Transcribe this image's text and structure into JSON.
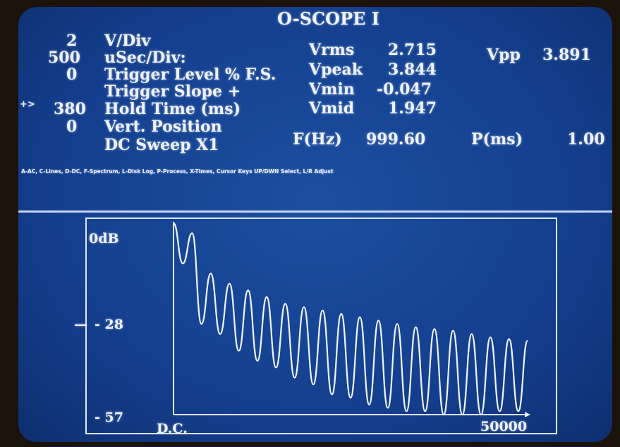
{
  "title": "O-SCOPE I",
  "settings": [
    {
      "value": "2",
      "label": "V/Div"
    },
    {
      "value": "500",
      "label": "uSec/Div:"
    },
    {
      "value": "0",
      "label": "Trigger Level % F.S."
    },
    {
      "value": "+>",
      "label": "Trigger Slope +"
    },
    {
      "value": "380",
      "label": "Hold Time (ms)"
    },
    {
      "value": "0",
      "label": "Vert. Position"
    },
    {
      "value": "",
      "label": "DC Sweep X1"
    }
  ],
  "measurements": {
    "vrms_label": "Vrms",
    "vrms": "2.715",
    "vpeak_label": "Vpeak",
    "vpeak": "3.844",
    "vmin_label": "Vmin",
    "vmin": "-0.047",
    "vmid_label": "Vmid",
    "vmid": "1.947",
    "vpp_label": "Vpp",
    "vpp": "3.891",
    "freq_label": "F(Hz)",
    "freq": "999.60",
    "period_label": "P(ms)",
    "period": "1.00"
  },
  "help_line": "A-AC, C-Lines, D-DC, F-Spectrum, L-Disk Log, P-Process, X-Times, Cursor Keys UP/DWN Select, L/R Adjust",
  "plot": {
    "y_top_label": "0dB",
    "y_mid_label": "- 28",
    "y_bottom_label": "- 57",
    "x_left_label": "D.C.",
    "x_right_label": "50000",
    "y_marker": "—"
  },
  "chart_data": {
    "type": "line",
    "ylabel": "dB",
    "ylim": [
      -57,
      0
    ],
    "xlim": [
      0,
      50000
    ],
    "series": [
      {
        "peaks_db": [
          0,
          -3,
          -15,
          -18,
          -20,
          -22,
          -24,
          -25,
          -26,
          -27,
          -28,
          -29,
          -30,
          -31,
          -31.5,
          -32,
          -33,
          -34,
          -34.5,
          -35
        ],
        "troughs_db": [
          -12,
          -30,
          -33,
          -38,
          -41,
          -43,
          -46,
          -48,
          -51,
          -52,
          -54,
          -55,
          -56,
          -56,
          -57,
          -57,
          -57,
          -56,
          -56
        ]
      }
    ]
  }
}
